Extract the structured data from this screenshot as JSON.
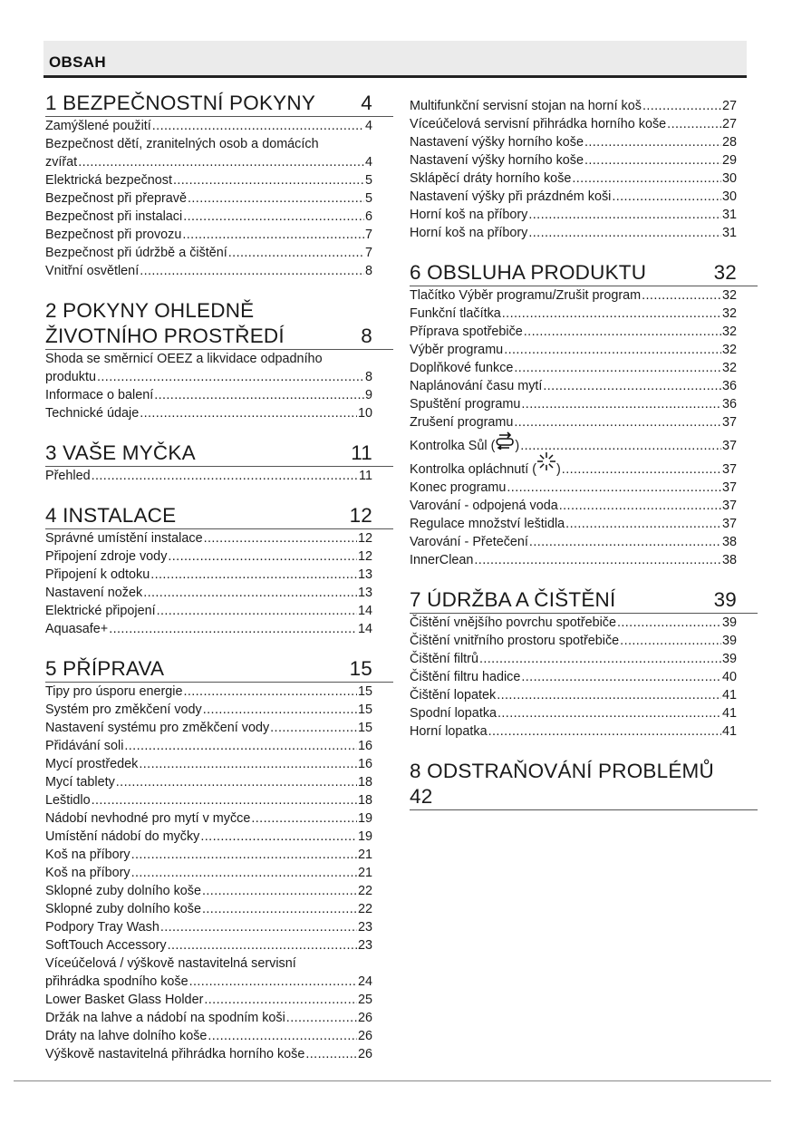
{
  "header": {
    "title": "OBSAH"
  },
  "left": [
    {
      "num": "1",
      "title": "BEZPEČNOSTNÍ POKYNY",
      "page": "4",
      "entries": [
        {
          "title": "Zamýšlené použití",
          "page": "4"
        },
        {
          "pre": "Bezpečnost dětí, zranitelných osob a domácích",
          "title": "zvířat",
          "page": "4"
        },
        {
          "title": "Elektrická bezpečnost",
          "page": "5"
        },
        {
          "title": "Bezpečnost při přepravě",
          "page": "5"
        },
        {
          "title": "Bezpečnost při instalaci",
          "page": "6"
        },
        {
          "title": "Bezpečnost při provozu",
          "page": "7"
        },
        {
          "title": "Bezpečnost při údržbě a čištění",
          "page": "7"
        },
        {
          "title": "Vnitřní osvětlení",
          "page": "8"
        }
      ]
    },
    {
      "num": "2",
      "title": "POKYNY OHLEDNĚ ŽIVOTNÍHO PROSTŘEDÍ",
      "page": "8",
      "entries": [
        {
          "pre": "Shoda se směrnicí OEEZ a likvidace odpadního",
          "title": "produktu",
          "page": "8"
        },
        {
          "title": "Informace o balení",
          "page": "9"
        },
        {
          "title": "Technické údaje",
          "page": "10"
        }
      ]
    },
    {
      "num": "3",
      "title": "VAŠE MYČKA",
      "page": "11",
      "entries": [
        {
          "title": "Přehled",
          "page": "11"
        }
      ]
    },
    {
      "num": "4",
      "title": "INSTALACE",
      "page": "12",
      "entries": [
        {
          "title": "Správné umístění instalace",
          "page": "12"
        },
        {
          "title": "Připojení zdroje vody",
          "page": "12"
        },
        {
          "title": "Připojení k odtoku",
          "page": "13"
        },
        {
          "title": "Nastavení nožek",
          "page": "13"
        },
        {
          "title": "Elektrické připojení",
          "page": "14"
        },
        {
          "title": "Aquasafe+",
          "page": "14"
        }
      ]
    },
    {
      "num": "5",
      "title": "PŘÍPRAVA",
      "page": "15",
      "entries": [
        {
          "title": "Tipy pro úsporu energie",
          "page": "15"
        },
        {
          "title": "Systém pro změkčení vody",
          "page": "15"
        },
        {
          "title": "Nastavení systému pro změkčení vody",
          "page": "15"
        },
        {
          "title": "Přidávání soli",
          "page": "16"
        },
        {
          "title": "Mycí prostředek",
          "page": "16"
        },
        {
          "title": "Mycí tablety",
          "page": "18"
        },
        {
          "title": "Leštidlo",
          "page": "18"
        },
        {
          "title": "Nádobí nevhodné pro mytí v myčce",
          "page": "19"
        },
        {
          "title": "Umístění nádobí do myčky",
          "page": "19"
        },
        {
          "title": "Koš na příbory",
          "page": "21"
        },
        {
          "title": "Koš na příbory",
          "page": "21"
        },
        {
          "title": "Sklopné zuby dolního koše",
          "page": "22"
        },
        {
          "title": "Sklopné zuby dolního koše",
          "page": "22"
        },
        {
          "title": "Podpory Tray Wash",
          "page": "23"
        },
        {
          "title": "SoftTouch Accessory",
          "page": "23"
        },
        {
          "pre": "Víceúčelová / výškově nastavitelná servisní",
          "title": "přihrádka spodního koše",
          "page": "24"
        },
        {
          "title": "Lower Basket Glass Holder",
          "page": "25"
        },
        {
          "title": "Držák na lahve a nádobí na spodním koši",
          "page": "26"
        },
        {
          "title": "Dráty na lahve dolního koše",
          "page": "26"
        },
        {
          "title": "Výškově nastavitelná přihrádka horního koše",
          "page": "26"
        }
      ]
    }
  ],
  "right": [
    {
      "num": "",
      "title": "",
      "page": "",
      "entries": [
        {
          "title": "Multifunkční servisní stojan na horní koš",
          "page": "27"
        },
        {
          "title": "Víceúčelová servisní přihrádka horního koše",
          "page": "27"
        },
        {
          "title": "Nastavení výšky horního koše",
          "page": "28"
        },
        {
          "title": "Nastavení výšky horního koše",
          "page": "29"
        },
        {
          "title": "Sklápěcí dráty horního koše",
          "page": "30"
        },
        {
          "title": "Nastavení výšky při prázdném koši",
          "page": "30"
        },
        {
          "title": "Horní koš na příbory",
          "page": "31"
        },
        {
          "title": "Horní koš na příbory",
          "page": "31"
        }
      ]
    },
    {
      "num": "6",
      "title": "OBSLUHA PRODUKTU",
      "page": "32",
      "entries": [
        {
          "title": "Tlačítko Výběr programu/Zrušit program",
          "page": "32"
        },
        {
          "title": "Funkční tlačítka",
          "page": "32"
        },
        {
          "title": "Příprava spotřebiče",
          "page": "32"
        },
        {
          "title": "Výběr programu",
          "page": "32"
        },
        {
          "title": "Doplňkové funkce",
          "page": "32"
        },
        {
          "title": "Naplánování času mytí",
          "page": "36"
        },
        {
          "title": "Spuštění programu",
          "page": "36"
        },
        {
          "title": "Zrušení programu",
          "page": "37"
        },
        {
          "title": "Kontrolka Sůl (",
          "after": ")",
          "icon": "salt-indicator-icon",
          "page": "37"
        },
        {
          "title": "Kontrolka opláchnutí (",
          "after": ")",
          "icon": "rinse-aid-indicator-icon",
          "page": "37"
        },
        {
          "title": "Konec programu",
          "page": "37"
        },
        {
          "title": "Varování - odpojená voda",
          "page": "37"
        },
        {
          "title": "Regulace množství leštidla",
          "page": "37"
        },
        {
          "title": "Varování - Přetečení",
          "page": "38"
        },
        {
          "title": "InnerClean",
          "page": "38"
        }
      ]
    },
    {
      "num": "7",
      "title": "ÚDRŽBA A ČIŠTĚNÍ",
      "page": "39",
      "entries": [
        {
          "title": "Čištění vnějšího povrchu spotřebiče",
          "page": "39"
        },
        {
          "title": "Čištění vnitřního prostoru spotřebiče",
          "page": "39"
        },
        {
          "title": "Čištění filtrů",
          "page": "39"
        },
        {
          "title": "Čištění filtru hadice",
          "page": "40"
        },
        {
          "title": "Čištění lopatek",
          "page": "41"
        },
        {
          "title": "Spodní lopatka",
          "page": "41"
        },
        {
          "title": "Horní lopatka",
          "page": "41"
        }
      ]
    },
    {
      "num": "8",
      "title": "ODSTRAŇOVÁNÍ PROBLÉMŮ",
      "page": "42",
      "entries": []
    }
  ]
}
